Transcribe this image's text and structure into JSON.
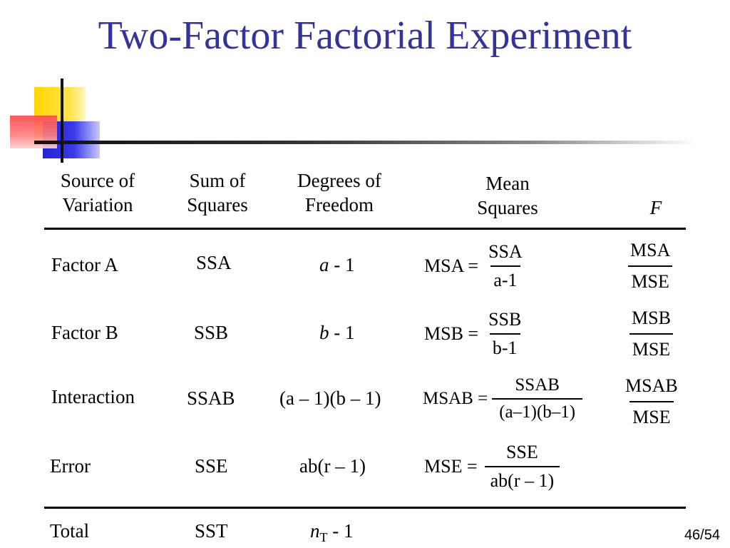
{
  "title": "Two-Factor Factorial Experiment",
  "headers": {
    "source": [
      "Source of",
      "Variation"
    ],
    "ss": [
      "Sum of",
      "Squares"
    ],
    "df": [
      "Degrees of",
      "Freedom"
    ],
    "ms": [
      "Mean",
      "Squares"
    ],
    "f": "F"
  },
  "rows": [
    {
      "source": "Factor A",
      "ss": "SSA",
      "df": {
        "var": "a",
        "rest": " - 1"
      },
      "ms": {
        "lhs": "MSA =",
        "num": "SSA",
        "den": "a-1"
      },
      "f": {
        "num": "MSA",
        "den": "MSE"
      }
    },
    {
      "source": "Factor B",
      "ss": "SSB",
      "df": {
        "var": "b",
        "rest": " - 1"
      },
      "ms": {
        "lhs": "MSB =",
        "num": "SSB",
        "den": "b-1"
      },
      "f": {
        "num": "MSB",
        "den": "MSE"
      }
    },
    {
      "source": "Interaction",
      "ss": "SSAB",
      "df": {
        "text": "(a – 1)(b – 1)"
      },
      "ms": {
        "lhs": "MSAB =",
        "num": "SSAB",
        "den": "(a–1)(b–1)"
      },
      "f": {
        "num": "MSAB",
        "den": "MSE"
      }
    },
    {
      "source": "Error",
      "ss": "SSE",
      "df": {
        "text": "ab(r – 1)"
      },
      "ms": {
        "lhs": "MSE =",
        "num": "SSE",
        "den": "ab(r – 1)"
      }
    },
    {
      "source": "Total",
      "ss": "SST",
      "df": {
        "var": "n",
        "sub": "T",
        "rest": " - 1"
      }
    }
  ],
  "page_number": "46/54"
}
